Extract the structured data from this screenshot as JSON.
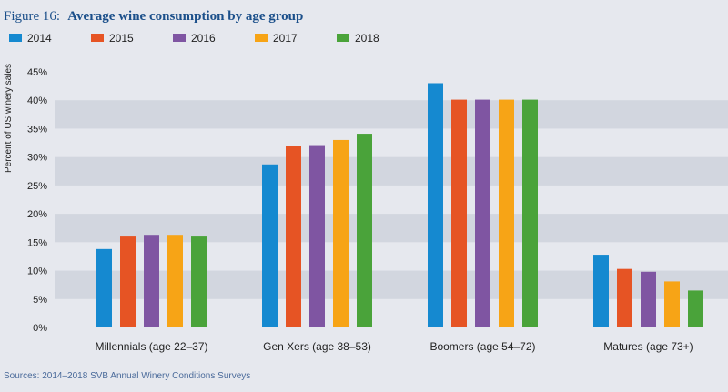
{
  "chart_data": {
    "type": "bar",
    "title_prefix": "Figure 16:",
    "title": "Average wine consumption by age group",
    "ylabel": "Percent of US winery sales",
    "xlabel": "",
    "ylim": [
      0,
      45
    ],
    "yticks": [
      "0%",
      "5%",
      "10%",
      "15%",
      "20%",
      "25%",
      "30%",
      "35%",
      "40%",
      "45%"
    ],
    "categories": [
      "Millennials (age 22–37)",
      "Gen Xers (age 38–53)",
      "Boomers (age 54–72)",
      "Matures (age 73+)"
    ],
    "series": [
      {
        "name": "2014",
        "color": "#1589d0",
        "values": [
          13.8,
          28.7,
          43.0,
          12.8
        ]
      },
      {
        "name": "2015",
        "color": "#e65424",
        "values": [
          16.0,
          32.0,
          40.1,
          10.3
        ]
      },
      {
        "name": "2016",
        "color": "#7f55a2",
        "values": [
          16.3,
          32.1,
          40.1,
          9.8
        ]
      },
      {
        "name": "2017",
        "color": "#f7a416",
        "values": [
          16.3,
          33.0,
          40.1,
          8.1
        ]
      },
      {
        "name": "2018",
        "color": "#4aa33a",
        "values": [
          16.0,
          34.1,
          40.1,
          6.5
        ]
      }
    ],
    "grid": "alternating horizontal bands",
    "legend_position": "top-left",
    "source": "Sources: 2014–2018 SVB Annual Winery Conditions Surveys"
  },
  "colors": {
    "title_text": "#1b4f8a",
    "band": "#d2d6df",
    "background": "#e6e8ee",
    "axis_text": "#222222",
    "source_text": "#4a6a9a"
  }
}
